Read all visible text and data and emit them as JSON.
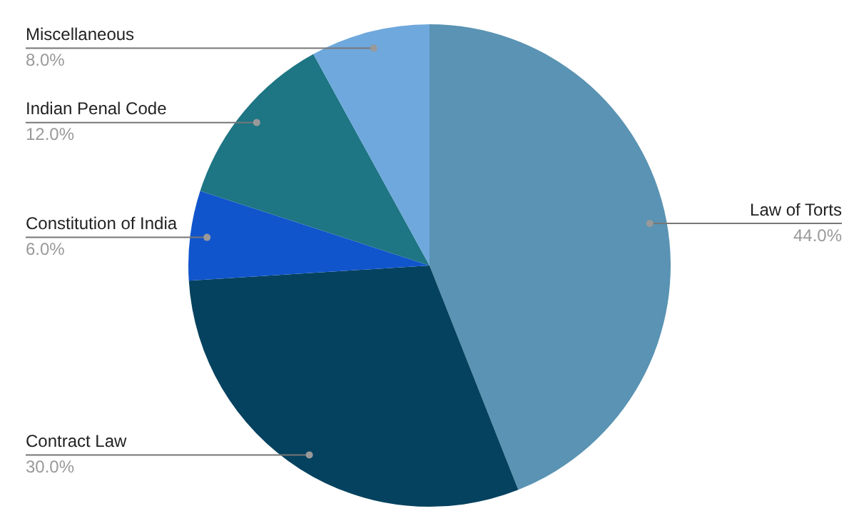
{
  "chart_data": {
    "type": "pie",
    "categories": [
      "Law of Torts",
      "Contract Law",
      "Constitution of India",
      "Indian Penal Code",
      "Miscellaneous"
    ],
    "values": [
      44,
      30,
      6,
      12,
      8
    ],
    "value_labels": [
      "44.0%",
      "30.0%",
      "6.0%",
      "12.0%",
      "8.0%"
    ],
    "colors": [
      "#5a93b3",
      "#05425f",
      "#1155cc",
      "#1e7584",
      "#6fa8dc"
    ],
    "legend": false
  }
}
